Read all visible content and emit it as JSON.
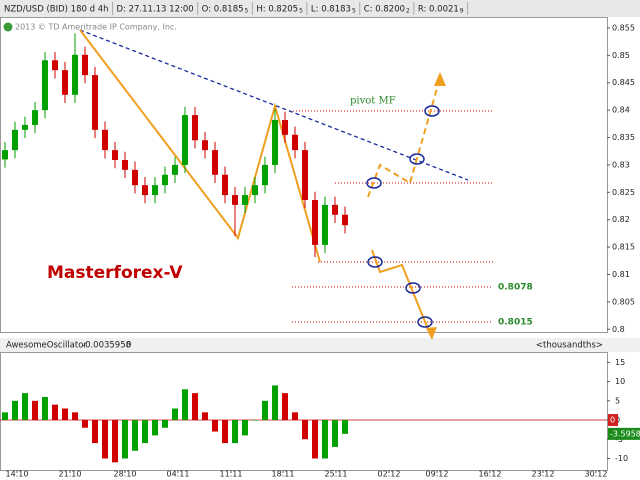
{
  "toolbar": [
    {
      "text": "NZD/USD (BID) 180 d 4h"
    },
    {
      "text": "D: 27.11.13 12:00"
    },
    {
      "text": "O: 0.8185",
      "pip": "5"
    },
    {
      "text": "H: 0.8205",
      "pip": "5"
    },
    {
      "text": "L: 0.8183",
      "pip": "5"
    },
    {
      "text": "C: 0.8200",
      "pip": "2"
    },
    {
      "text": "R: 0.0021",
      "pip": "9"
    }
  ],
  "copyright": "2013 © TD Ameritrade IP Company, Inc.",
  "watermark": "Masterforex-V",
  "annotations": {
    "pivot": "pivot MF",
    "level1": "0.8078",
    "level2": "0.8015"
  },
  "chart_data": [
    {
      "type": "candlestick",
      "up_color": "#00a000",
      "down_color": "#d00000",
      "x": [
        0.5,
        1.5,
        2.5,
        3.5,
        4.5,
        5.5,
        6.5,
        7.5,
        8.5,
        9.5,
        10.5,
        11.5,
        12.5,
        13.5,
        14.5,
        15.5,
        16.5,
        17.5,
        18.5,
        19.5,
        20.5,
        21.5,
        22.5,
        23.5,
        24.5,
        25.5,
        26.5,
        27.5,
        28.5,
        29.5,
        30.5,
        31.5,
        32.5,
        33.5,
        34.5
      ],
      "open": [
        0.831,
        0.8327,
        0.8364,
        0.8373,
        0.84,
        0.8491,
        0.8473,
        0.8428,
        0.8501,
        0.8464,
        0.8364,
        0.8327,
        0.8309,
        0.8291,
        0.8263,
        0.8245,
        0.8263,
        0.8282,
        0.83,
        0.8391,
        0.8345,
        0.8327,
        0.8282,
        0.8245,
        0.8227,
        0.8245,
        0.8263,
        0.83,
        0.8382,
        0.8355,
        0.8327,
        0.8236,
        0.8154,
        0.8227,
        0.8209
      ],
      "high": [
        0.8342,
        0.8379,
        0.8388,
        0.8415,
        0.8506,
        0.8506,
        0.8488,
        0.854,
        0.8516,
        0.8479,
        0.8379,
        0.8342,
        0.8324,
        0.8306,
        0.8278,
        0.8278,
        0.8297,
        0.8315,
        0.8406,
        0.8406,
        0.836,
        0.8342,
        0.8297,
        0.826,
        0.826,
        0.8278,
        0.8315,
        0.8402,
        0.8397,
        0.837,
        0.8342,
        0.8251,
        0.8242,
        0.8242,
        0.8224
      ],
      "low": [
        0.8295,
        0.8312,
        0.8349,
        0.8358,
        0.8385,
        0.8458,
        0.8413,
        0.8413,
        0.8449,
        0.8349,
        0.8312,
        0.8294,
        0.8276,
        0.8248,
        0.823,
        0.823,
        0.8248,
        0.8267,
        0.8285,
        0.833,
        0.8312,
        0.8267,
        0.823,
        0.817,
        0.8212,
        0.823,
        0.8248,
        0.8285,
        0.834,
        0.8312,
        0.8221,
        0.8132,
        0.8139,
        0.8194,
        0.8175
      ],
      "close": [
        0.8327,
        0.8364,
        0.8373,
        0.84,
        0.8491,
        0.8473,
        0.8428,
        0.8501,
        0.8464,
        0.8364,
        0.8327,
        0.8309,
        0.8291,
        0.8263,
        0.8245,
        0.8263,
        0.8282,
        0.83,
        0.8391,
        0.8345,
        0.8327,
        0.8282,
        0.8245,
        0.8227,
        0.8245,
        0.8263,
        0.83,
        0.8382,
        0.8355,
        0.8327,
        0.8236,
        0.8154,
        0.8227,
        0.8209,
        0.819
      ],
      "xlim": [
        0,
        60.7
      ],
      "ylim": [
        0.7995,
        0.857
      ],
      "yticks": [
        0.855,
        {
          "value": 0.85,
          "label": "0.85"
        },
        0.845,
        {
          "value": 0.84,
          "label": "0.84"
        },
        0.835,
        {
          "value": 0.83,
          "label": "0.83"
        },
        0.825,
        {
          "value": 0.82,
          "label": "0.82"
        },
        0.815,
        {
          "value": 0.81,
          "label": "0.81"
        },
        0.805,
        {
          "value": 0.8,
          "label": "0.8"
        }
      ]
    },
    {
      "type": "oscillator",
      "title": "AwesomeOscillator",
      "current": "-0.0035958",
      "level": "0",
      "units": "<thousandths>",
      "last_label": "-3.5958",
      "up_color": "#00a000",
      "down_color": "#d00000",
      "x": [
        0.5,
        1.5,
        2.5,
        3.5,
        4.5,
        5.5,
        6.5,
        7.5,
        8.5,
        9.5,
        10.5,
        11.5,
        12.5,
        13.5,
        14.5,
        15.5,
        16.5,
        17.5,
        18.5,
        19.5,
        20.5,
        21.5,
        22.5,
        23.5,
        24.5,
        25.5,
        26.5,
        27.5,
        28.5,
        29.5,
        30.5,
        31.5,
        32.5,
        33.5,
        34.5
      ],
      "values": [
        2,
        5,
        7,
        5,
        6,
        4,
        3,
        2,
        -2,
        -6,
        -10,
        -11,
        -10,
        -8,
        -6,
        -4,
        -2,
        3,
        8,
        7,
        2,
        -3,
        -6,
        -6,
        -4,
        0,
        5,
        9,
        7,
        2,
        -5,
        -10,
        -10,
        -7,
        -3.5958
      ],
      "xlim": [
        0,
        60.7
      ],
      "ylim": [
        -13,
        17.7
      ],
      "yticks": [
        15,
        10,
        5,
        0,
        -5,
        -10
      ],
      "xticks": [
        {
          "value": 1.7,
          "label": "14.10"
        },
        {
          "value": 7.0,
          "label": "21.10"
        },
        {
          "value": 12.5,
          "label": "28.10"
        },
        {
          "value": 17.8,
          "label": "04.11"
        },
        {
          "value": 23.1,
          "label": "11.11"
        },
        {
          "value": 28.3,
          "label": "18.11"
        },
        {
          "value": 33.6,
          "label": "25.11"
        },
        {
          "value": 38.9,
          "label": "02.12"
        },
        {
          "value": 43.7,
          "label": "09.12"
        },
        {
          "value": 49.0,
          "label": "16.12"
        },
        {
          "value": 54.3,
          "label": "23.12"
        },
        {
          "value": 59.6,
          "label": "30.12"
        }
      ]
    }
  ]
}
